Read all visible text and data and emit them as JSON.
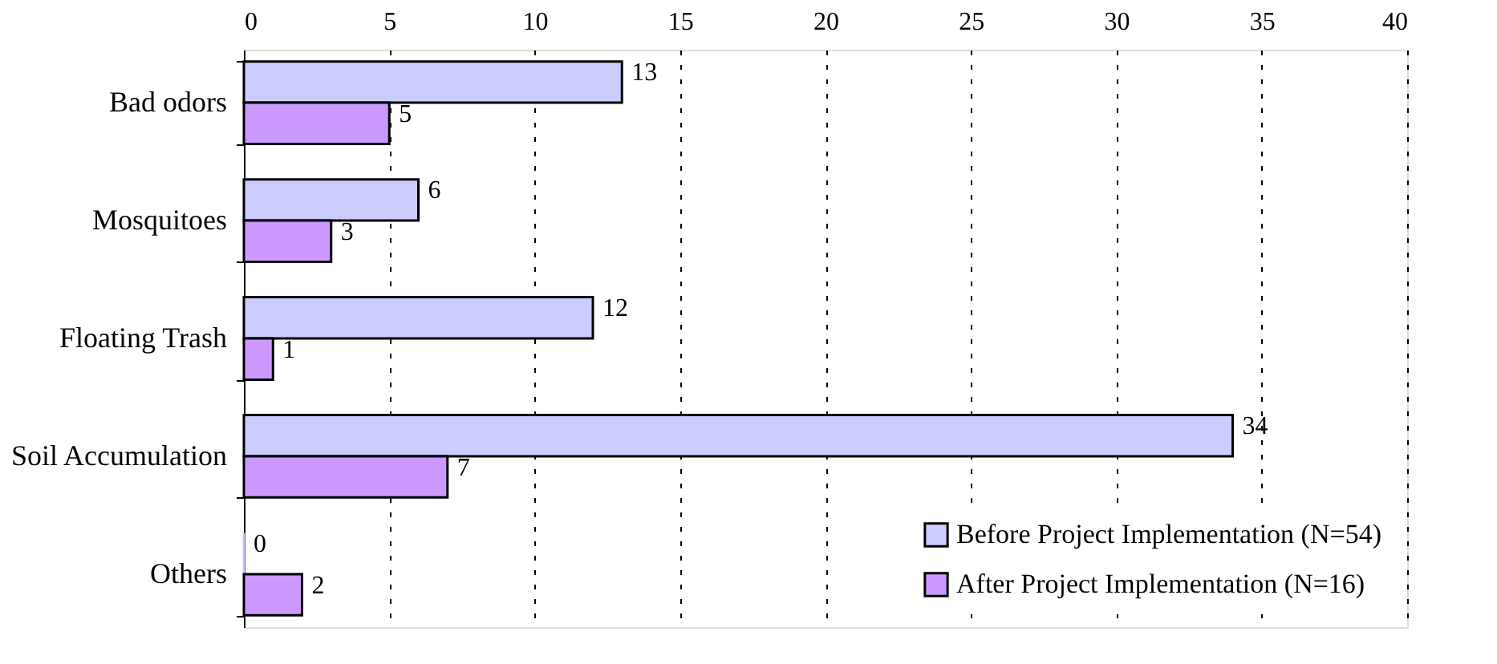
{
  "chart_data": {
    "type": "bar",
    "orientation": "horizontal",
    "categories": [
      "Bad odors",
      "Mosquitoes",
      "Floating Trash",
      "Soil Accumulation",
      "Others"
    ],
    "series": [
      {
        "name": "Before Project Implementation (N=54)",
        "color": "#ccccff",
        "values": [
          13,
          6,
          12,
          34,
          0
        ]
      },
      {
        "name": "After Project Implementation (N=16)",
        "color": "#cc99ff",
        "values": [
          5,
          3,
          1,
          7,
          2
        ]
      }
    ],
    "xlim": [
      0,
      40
    ],
    "xticks": [
      0,
      5,
      10,
      15,
      20,
      25,
      30,
      35,
      40
    ],
    "grid": "x",
    "legend": "bottom right",
    "data_labels": true
  }
}
